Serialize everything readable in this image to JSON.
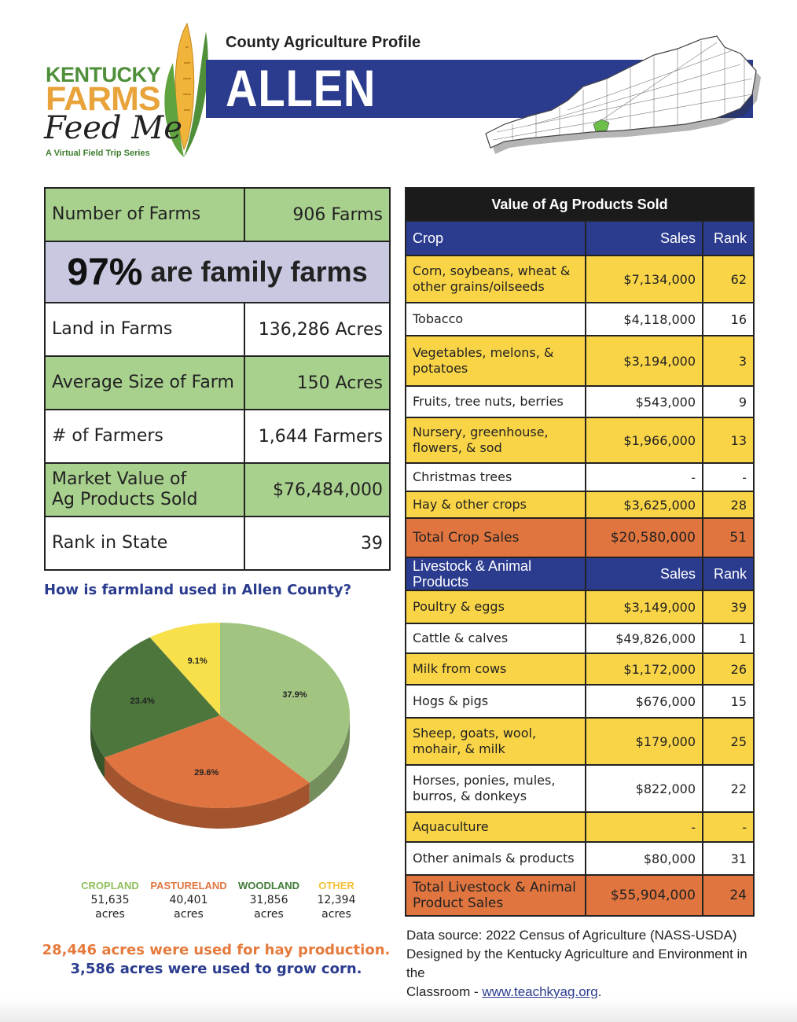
{
  "header": {
    "logo": {
      "line1": "KENTUCKY",
      "line2": "FARMS",
      "line3": "Feed Me",
      "tagline": "A Virtual Field Trip Series"
    },
    "profile_label": "County Agriculture Profile",
    "county": "ALLEN"
  },
  "summary": {
    "farms_label": "Number of Farms",
    "farms_value": "906 Farms",
    "family_pct": "97%",
    "family_text": "are family farms",
    "land_label": "Land in Farms",
    "land_value": "136,286 Acres",
    "avg_label": "Average Size of Farm",
    "avg_value": "150 Acres",
    "farmers_label": "# of Farmers",
    "farmers_value": "1,644 Farmers",
    "market_label_1": "Market Value of",
    "market_label_2": "Ag Products Sold",
    "market_value": "$76,484,000",
    "rank_label": "Rank in State",
    "rank_value": "39"
  },
  "landuse": {
    "question": "How is farmland used in Allen County?",
    "legend": [
      {
        "name": "CROPLAND",
        "acres": "51,635",
        "unit": "acres",
        "color": "#8fbf5d"
      },
      {
        "name": "PASTURELAND",
        "acres": "40,401",
        "unit": "acres",
        "color": "#e0753f"
      },
      {
        "name": "WOODLAND",
        "acres": "31,856",
        "unit": "acres",
        "color": "#3f7a35"
      },
      {
        "name": "OTHER",
        "acres": "12,394",
        "unit": "acres",
        "color": "#f2c23a"
      }
    ],
    "hay_note": "28,446 acres were used for hay production.",
    "corn_note": "3,586 acres were used to grow corn."
  },
  "chart_data": {
    "type": "pie",
    "title": "How is farmland used in Allen County?",
    "categories": [
      "Cropland",
      "Pastureland",
      "Woodland",
      "Other"
    ],
    "values": [
      37.9,
      29.6,
      23.4,
      9.1
    ],
    "labels": [
      "37.9%",
      "29.6%",
      "23.4%",
      "9.1%"
    ],
    "colors": [
      "#a1c581",
      "#e07440",
      "#4c763c",
      "#f8e04a"
    ]
  },
  "products": {
    "title": "Value of Ag Products Sold",
    "crop_header": {
      "c1": "Crop",
      "c2": "Sales",
      "c3": "Rank"
    },
    "crops": [
      {
        "name": "Corn, soybeans, wheat & other grains/oilseeds",
        "sales": "$7,134,000",
        "rank": "62"
      },
      {
        "name": "Tobacco",
        "sales": "$4,118,000",
        "rank": "16"
      },
      {
        "name": "Vegetables, melons, & potatoes",
        "sales": "$3,194,000",
        "rank": "3"
      },
      {
        "name": "Fruits, tree nuts, berries",
        "sales": "$543,000",
        "rank": "9"
      },
      {
        "name": "Nursery, greenhouse, flowers, & sod",
        "sales": "$1,966,000",
        "rank": "13"
      },
      {
        "name": "Christmas trees",
        "sales": "-",
        "rank": "-"
      },
      {
        "name": "Hay & other crops",
        "sales": "$3,625,000",
        "rank": "28"
      }
    ],
    "crop_total": {
      "name": "Total Crop Sales",
      "sales": "$20,580,000",
      "rank": "51"
    },
    "livestock_header": {
      "c1": "Livestock & Animal Products",
      "c2": "Sales",
      "c3": "Rank"
    },
    "livestock": [
      {
        "name": "Poultry & eggs",
        "sales": "$3,149,000",
        "rank": "39"
      },
      {
        "name": "Cattle & calves",
        "sales": "$49,826,000",
        "rank": "1"
      },
      {
        "name": "Milk from cows",
        "sales": "$1,172,000",
        "rank": "26"
      },
      {
        "name": "Hogs & pigs",
        "sales": "$676,000",
        "rank": "15"
      },
      {
        "name": "Sheep, goats, wool, mohair, & milk",
        "sales": "$179,000",
        "rank": "25"
      },
      {
        "name": "Horses, ponies, mules, burros, & donkeys",
        "sales": "$822,000",
        "rank": "22"
      },
      {
        "name": "Aquaculture",
        "sales": "-",
        "rank": "-"
      },
      {
        "name": "Other animals & products",
        "sales": "$80,000",
        "rank": "31"
      }
    ],
    "livestock_total": {
      "name": "Total Livestock & Animal Product Sales",
      "sales": "$55,904,000",
      "rank": "24"
    }
  },
  "source": {
    "line1": "Data source: 2022 Census of Agriculture (NASS-USDA)",
    "line2": "Designed by the Kentucky Agriculture and Environment in the",
    "line3_prefix": "Classroom - ",
    "link": "www.teachkyag.org",
    "line3_suffix": "."
  }
}
